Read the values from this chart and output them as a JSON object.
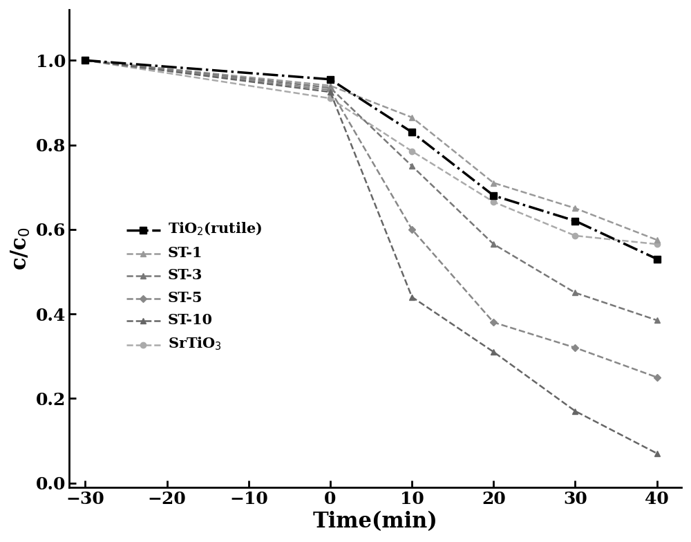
{
  "x_full": [
    -30,
    0,
    10,
    20,
    30,
    40
  ],
  "tio2_rutile": [
    1.0,
    0.955,
    0.83,
    0.68,
    0.62,
    0.53
  ],
  "st1": [
    1.0,
    0.94,
    0.865,
    0.71,
    0.65,
    0.575
  ],
  "st3": [
    1.0,
    0.935,
    0.75,
    0.565,
    0.45,
    0.385
  ],
  "st5": [
    1.0,
    0.93,
    0.6,
    0.38,
    0.32,
    0.25
  ],
  "st10": [
    1.0,
    0.925,
    0.44,
    0.31,
    0.17,
    0.07
  ],
  "srtio3": [
    1.0,
    0.91,
    0.785,
    0.665,
    0.585,
    0.565
  ],
  "gray1": "#999999",
  "gray2": "#777777",
  "gray3": "#888888",
  "gray4": "#666666",
  "gray5": "#aaaaaa",
  "black": "#000000",
  "background_color": "#ffffff",
  "ylabel": "c/c$_0$",
  "xlabel": "Time(min)",
  "xlim": [
    -32,
    43
  ],
  "ylim": [
    -0.01,
    1.12
  ],
  "yticks": [
    0.0,
    0.2,
    0.4,
    0.6,
    0.8,
    1.0
  ],
  "xticks": [
    -30,
    -20,
    -10,
    0,
    10,
    20,
    30,
    40
  ]
}
